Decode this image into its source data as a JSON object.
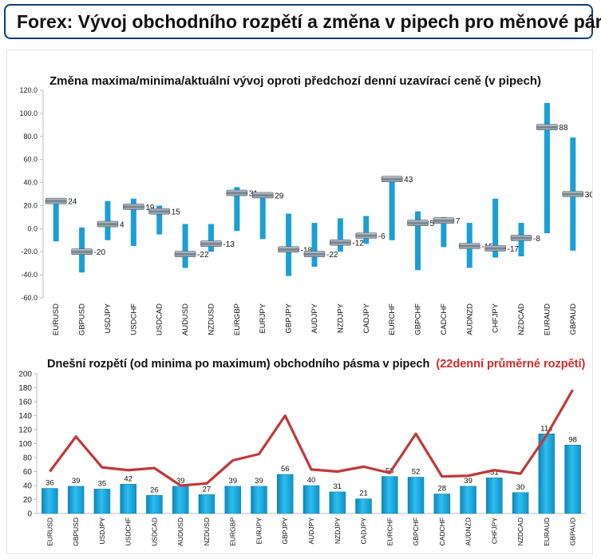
{
  "page": {
    "title": "Forex: Vývoj obchodního rozpětí a změna v pipech pro měnové páry"
  },
  "colors": {
    "accent": "#1ea7dc",
    "bar_dark": "#0b86b8",
    "avg_line": "#c0393b",
    "header_border": "#0d3f7c"
  },
  "chart_data": [
    {
      "type": "range-bar",
      "title": "Změna maxima/minima/aktuální vývoj oproti předchozí denní uzavírací ceně (v pipech)",
      "ylim": [
        -60,
        120
      ],
      "yticks": [
        "-60.0",
        "-40.0",
        "-20.0",
        "0.0",
        "20.0",
        "40.0",
        "60.0",
        "80.0",
        "100.0",
        "120.0"
      ],
      "categories": [
        "EURUSD",
        "GBPUSD",
        "USDJPY",
        "USDCHF",
        "USDCAD",
        "AUDUSD",
        "NZDUSD",
        "EURGBP",
        "EURJPY",
        "GBPJPY",
        "AUDJPY",
        "NZDJPY",
        "CADJPY",
        "EURCHF",
        "GBPCHF",
        "CADCHF",
        "AUDNZD",
        "CHFJPY",
        "NZDCAD",
        "EURAUD",
        "GBPAUD"
      ],
      "high": [
        23,
        1,
        24,
        26,
        20,
        4,
        4,
        36,
        30,
        13,
        5,
        9,
        11,
        43,
        15,
        10,
        5,
        26,
        5,
        109,
        79
      ],
      "low": [
        -11,
        -38,
        -10,
        -15,
        -5,
        -34,
        -20,
        -2,
        -9,
        -41,
        -33,
        -20,
        -13,
        -10,
        -36,
        -16,
        -34,
        -25,
        -24,
        -4,
        -19
      ],
      "current": [
        24,
        -20,
        4,
        19,
        15,
        -22,
        -13,
        31,
        29,
        -18,
        -22,
        -12,
        -6,
        43,
        5,
        7,
        -15,
        -17,
        -8,
        88,
        30
      ],
      "labels": [
        "24",
        "-20",
        "4",
        "19",
        "15",
        "-22",
        "-13",
        "31",
        "29",
        "-18",
        "-22",
        "-12",
        "-6",
        "43",
        "5",
        "7",
        "-15",
        "-17",
        "-8",
        "88",
        "30"
      ]
    },
    {
      "type": "bar",
      "title": "Dnešní rozpětí (od minima po maximum) obchodního pásma v pipech",
      "title_highlight": "(22denní průměrné rozpětí)",
      "ylim": [
        0,
        200
      ],
      "yticks": [
        "0",
        "20",
        "40",
        "60",
        "80",
        "100",
        "120",
        "140",
        "160",
        "180",
        "200"
      ],
      "categories": [
        "EURUSD",
        "GBPUSD",
        "USDJPY",
        "USDCHF",
        "USDCAD",
        "AUDUSD",
        "NZDUSD",
        "EURGBP",
        "EURJPY",
        "GBPJPY",
        "AUDJPY",
        "NZDJPY",
        "CADJPY",
        "EURCHF",
        "GBPCHF",
        "CADCHF",
        "AUDNZD",
        "CHFJPY",
        "NZDCAD",
        "EURAUD",
        "GBPAUD"
      ],
      "values": [
        36,
        39,
        35,
        42,
        26,
        39,
        27,
        39,
        39,
        56,
        40,
        31,
        21,
        53,
        52,
        28,
        39,
        51,
        30,
        114,
        98
      ],
      "labels": [
        "36",
        "39",
        "35",
        "42",
        "26",
        "39",
        "27",
        "39",
        "39",
        "56",
        "40",
        "31",
        "21",
        "53",
        "52",
        "28",
        "39",
        "51",
        "30",
        "114",
        "98"
      ],
      "avg_range": [
        60,
        110,
        66,
        62,
        65,
        40,
        43,
        76,
        85,
        140,
        63,
        60,
        67,
        58,
        114,
        53,
        54,
        62,
        57,
        112,
        177
      ]
    }
  ]
}
